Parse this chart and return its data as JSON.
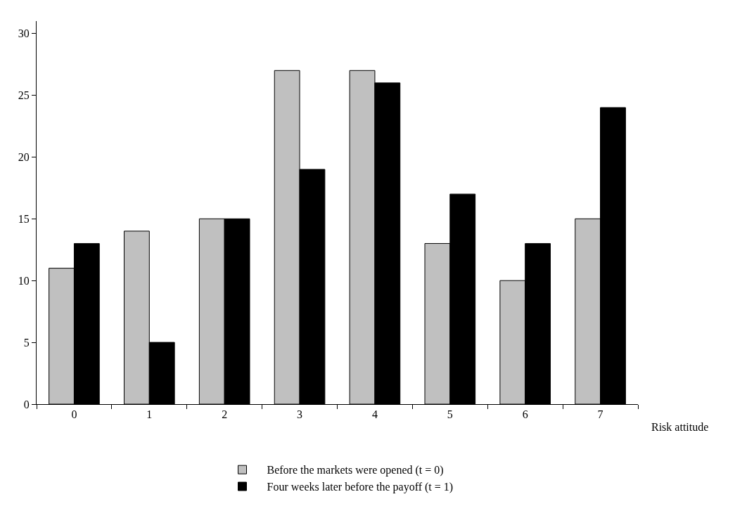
{
  "chart_data": {
    "type": "bar",
    "xlabel": "Risk attitude",
    "categories": [
      "0",
      "1",
      "2",
      "3",
      "4",
      "5",
      "6",
      "7"
    ],
    "series": [
      {
        "name": "Before the markets were opened (t = 0)",
        "color": "#c0c0c0",
        "values": [
          11,
          14,
          15,
          27,
          27,
          13,
          10,
          15
        ]
      },
      {
        "name": "Four weeks later before the payoff (t = 1)",
        "color": "#000000",
        "values": [
          13,
          5,
          15,
          19,
          26,
          17,
          13,
          24
        ]
      }
    ],
    "ylim": [
      0,
      31
    ],
    "yticks": [
      0,
      5,
      10,
      15,
      20,
      25,
      30
    ],
    "grid": false,
    "legend": "bottom"
  }
}
